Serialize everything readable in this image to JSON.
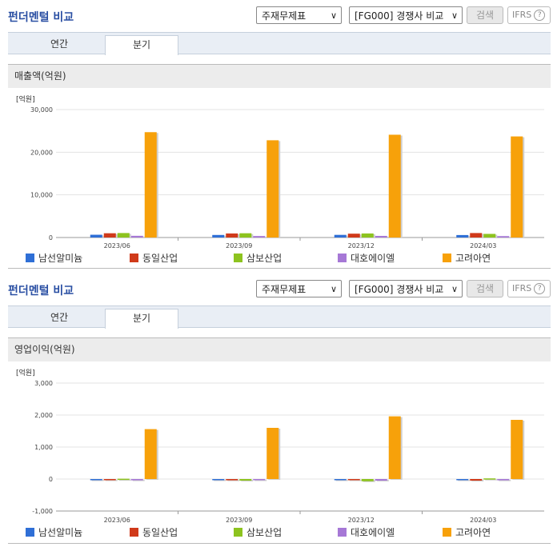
{
  "panels": [
    {
      "title": "펀더멘털 비교",
      "select1": "주재무제표",
      "select2": "[FG000] 경쟁사 비교",
      "search_button": "검색",
      "ifrs": "IFRS",
      "tabs": [
        {
          "label": "연간"
        },
        {
          "label": "분기"
        }
      ],
      "chart_header": "매출액(억원)",
      "unit": "[억원]"
    },
    {
      "title": "펀더멘털 비교",
      "select1": "주재무제표",
      "select2": "[FG000] 경쟁사 비교",
      "search_button": "검색",
      "ifrs": "IFRS",
      "tabs": [
        {
          "label": "연간"
        },
        {
          "label": "분기"
        }
      ],
      "chart_header": "영업이익(억원)",
      "unit": "[억원]"
    }
  ],
  "legend": [
    {
      "name": "남선알미늄",
      "color": "#2f6fd6"
    },
    {
      "name": "동일산업",
      "color": "#d03a1a"
    },
    {
      "name": "삼보산업",
      "color": "#8dc31f"
    },
    {
      "name": "대호에이엘",
      "color": "#a678d6"
    },
    {
      "name": "고려아연",
      "color": "#f7a10a"
    }
  ],
  "chart_data": [
    {
      "type": "bar",
      "categories": [
        "2023/06",
        "2023/09",
        "2023/12",
        "2024/03"
      ],
      "ylim": [
        0,
        30000
      ],
      "yticks": [
        "30,000",
        "20,000",
        "10,000",
        "0"
      ],
      "ytick_values": [
        30000,
        20000,
        10000,
        0
      ],
      "series": [
        {
          "name": "남선알미늄",
          "values": [
            650,
            600,
            620,
            580
          ]
        },
        {
          "name": "동일산업",
          "values": [
            1000,
            950,
            900,
            1050
          ]
        },
        {
          "name": "삼보산업",
          "values": [
            1050,
            1000,
            950,
            850
          ]
        },
        {
          "name": "대호에이엘",
          "values": [
            400,
            350,
            380,
            330
          ]
        },
        {
          "name": "고려아연",
          "values": [
            24700,
            22800,
            24100,
            23700
          ]
        }
      ]
    },
    {
      "type": "bar",
      "categories": [
        "2023/06",
        "2023/09",
        "2023/12",
        "2024/03"
      ],
      "ylim": [
        -1000,
        3000
      ],
      "yticks": [
        "3,000",
        "2,000",
        "1,000",
        "0",
        "-1,000"
      ],
      "ytick_values": [
        3000,
        2000,
        1000,
        0,
        -1000
      ],
      "series": [
        {
          "name": "남선알미늄",
          "values": [
            -30,
            -10,
            -20,
            -15
          ]
        },
        {
          "name": "동일산업",
          "values": [
            -10,
            -40,
            -15,
            -50
          ]
        },
        {
          "name": "삼보산업",
          "values": [
            10,
            -50,
            -70,
            20
          ]
        },
        {
          "name": "대호에이엘",
          "values": [
            -40,
            -30,
            -50,
            -40
          ]
        },
        {
          "name": "고려아연",
          "values": [
            1560,
            1600,
            1960,
            1850
          ]
        }
      ]
    }
  ]
}
